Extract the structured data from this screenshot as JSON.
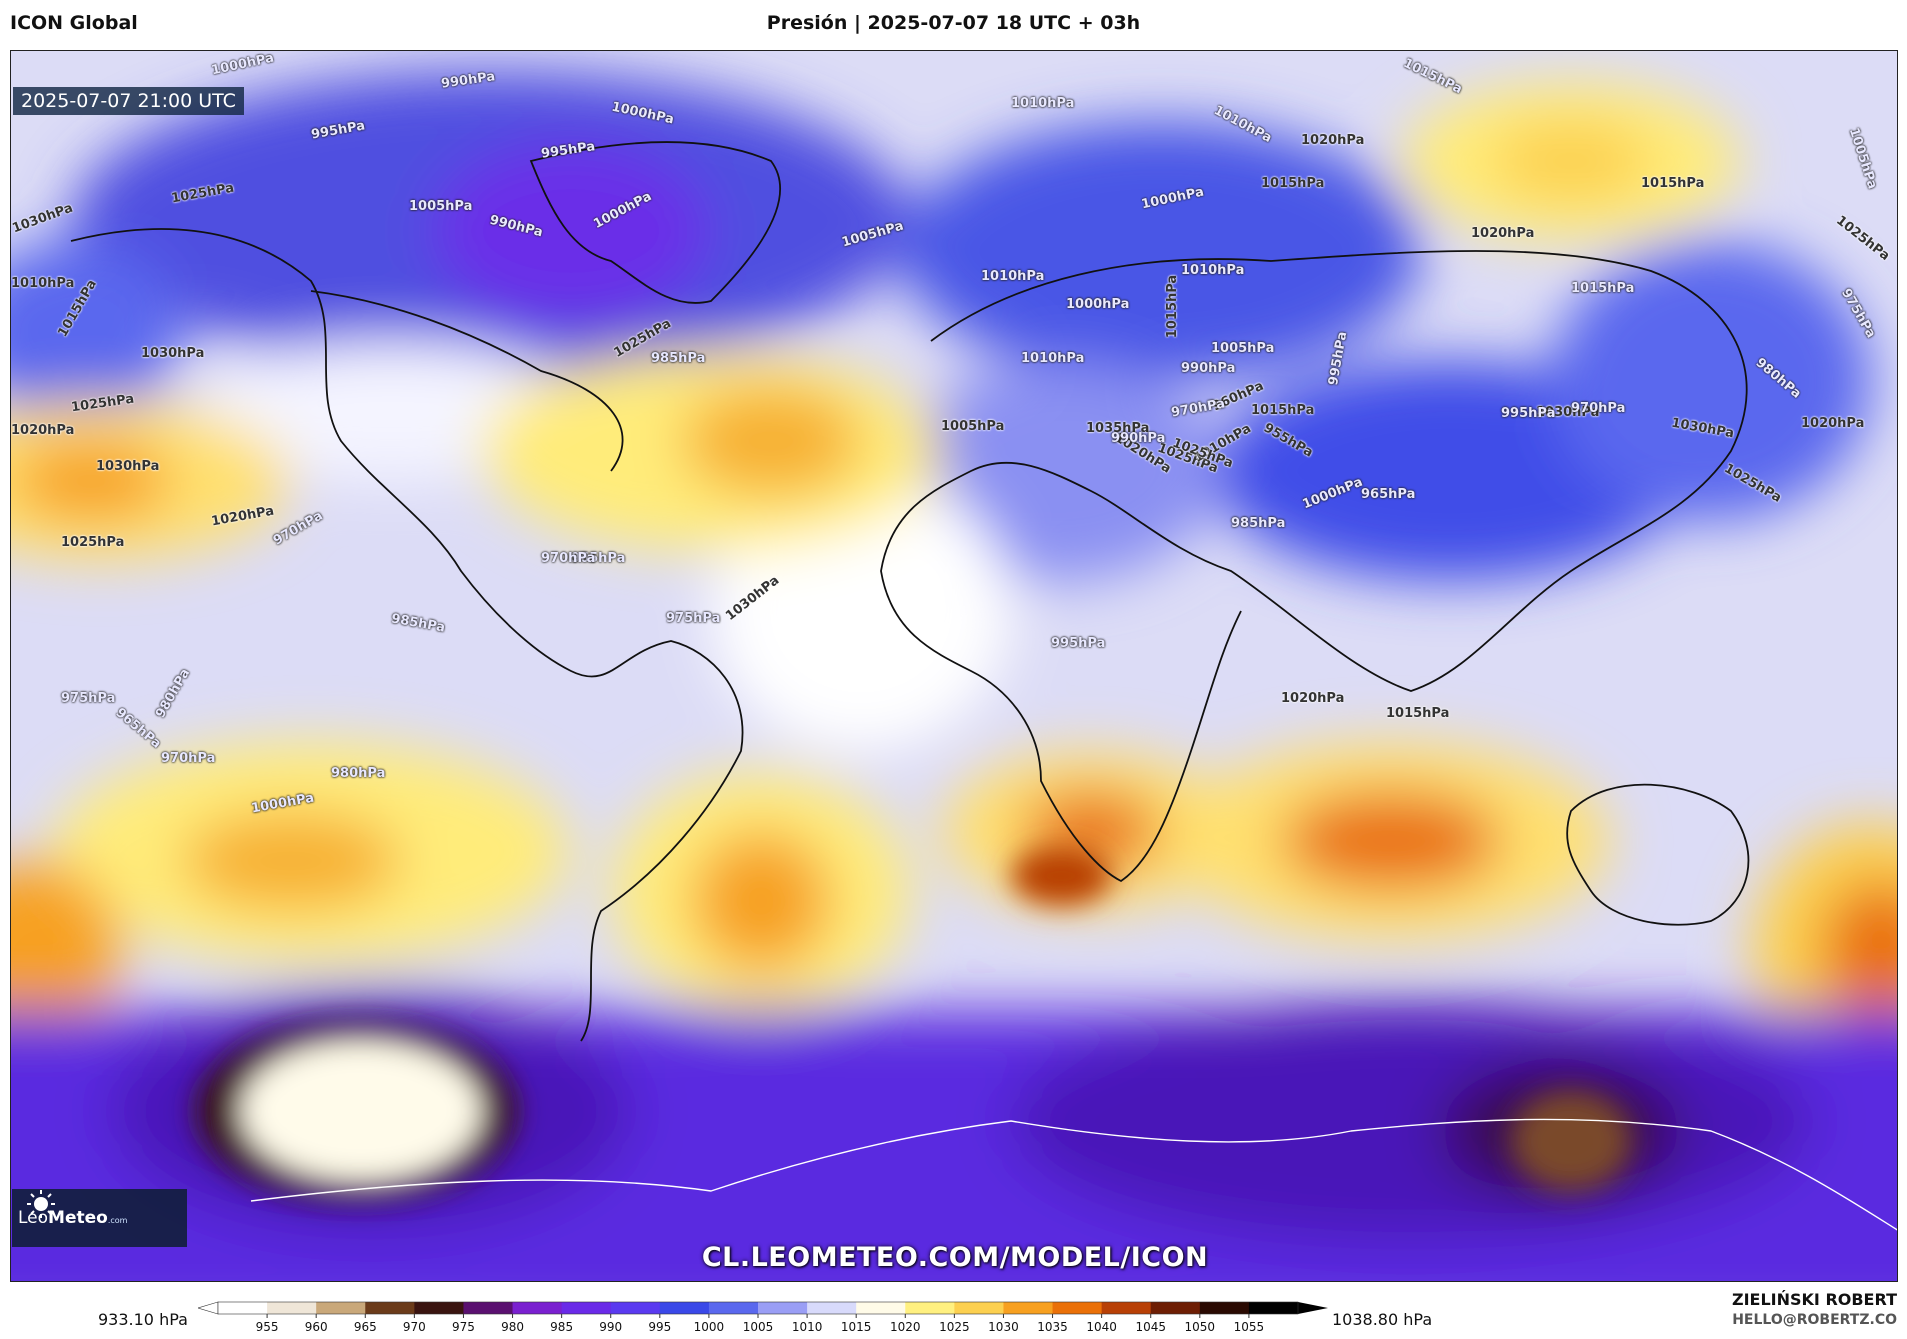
{
  "header": {
    "model": "ICON Global",
    "title": "Presión | 2025-07-07 18 UTC + 03h"
  },
  "map": {
    "valid_time": "2025-07-07 21:00 UTC",
    "website": "CL.LEOMETEO.COM/MODEL/ICON",
    "logo": {
      "name": "Leo",
      "bold": "Meteo",
      "suffix": ".com",
      "icon": "sun-logo-icon"
    },
    "isobar_labels": [
      {
        "t": "1000hPa",
        "dark": false
      },
      {
        "t": "990hPa",
        "dark": false
      },
      {
        "t": "995hPa",
        "dark": false
      },
      {
        "t": "1000hPa",
        "dark": false
      },
      {
        "t": "995hPa",
        "dark": false
      },
      {
        "t": "1005hPa",
        "dark": false
      },
      {
        "t": "990hPa",
        "dark": false
      },
      {
        "t": "1000hPa",
        "dark": false
      },
      {
        "t": "1015hPa",
        "dark": false
      },
      {
        "t": "1010hPa",
        "dark": false
      },
      {
        "t": "1010hPa",
        "dark": false
      },
      {
        "t": "1005hPa",
        "dark": false
      },
      {
        "t": "1025hPa",
        "dark": true
      },
      {
        "t": "1030hPa",
        "dark": true
      },
      {
        "t": "1020hPa",
        "dark": true
      },
      {
        "t": "1015hPa",
        "dark": true
      },
      {
        "t": "1015hPa",
        "dark": true
      },
      {
        "t": "1025hPa",
        "dark": true
      },
      {
        "t": "1020hPa",
        "dark": true
      },
      {
        "t": "1010hPa",
        "dark": true
      },
      {
        "t": "1015hPa",
        "dark": true
      },
      {
        "t": "1000hPa",
        "dark": false
      },
      {
        "t": "1010hPa",
        "dark": false
      },
      {
        "t": "1000hPa",
        "dark": false
      },
      {
        "t": "1015hPa",
        "dark": false
      },
      {
        "t": "1010hPa",
        "dark": false
      },
      {
        "t": "1005hPa",
        "dark": false
      },
      {
        "t": "1025hPa",
        "dark": true
      },
      {
        "t": "1020hPa",
        "dark": true
      },
      {
        "t": "1015hPa",
        "dark": true
      },
      {
        "t": "1030hPa",
        "dark": true
      },
      {
        "t": "1025hPa",
        "dark": true
      },
      {
        "t": "1030hPa",
        "dark": true
      },
      {
        "t": "1015hPa",
        "dark": true
      },
      {
        "t": "1020hPa",
        "dark": true
      },
      {
        "t": "1030hPa",
        "dark": true
      },
      {
        "t": "1035hPa",
        "dark": true
      },
      {
        "t": "1025hPa",
        "dark": true
      },
      {
        "t": "1010hPa",
        "dark": true
      },
      {
        "t": "1005hPa",
        "dark": true
      },
      {
        "t": "1025hPa",
        "dark": true
      },
      {
        "t": "1030hPa",
        "dark": true
      },
      {
        "t": "1020hPa",
        "dark": true
      },
      {
        "t": "1025hPa",
        "dark": true
      },
      {
        "t": "1030hPa",
        "dark": true
      },
      {
        "t": "1025hPa",
        "dark": true
      },
      {
        "t": "1020hPa",
        "dark": true
      },
      {
        "t": "1010hPa",
        "dark": false
      },
      {
        "t": "1005hPa",
        "dark": false
      },
      {
        "t": "990hPa",
        "dark": false
      },
      {
        "t": "995hPa",
        "dark": false
      },
      {
        "t": "975hPa",
        "dark": false
      },
      {
        "t": "980hPa",
        "dark": false
      },
      {
        "t": "965hPa",
        "dark": false
      },
      {
        "t": "955hPa",
        "dark": true
      },
      {
        "t": "960hPa",
        "dark": true
      },
      {
        "t": "970hPa",
        "dark": false
      },
      {
        "t": "985hPa",
        "dark": false
      },
      {
        "t": "1000hPa",
        "dark": false
      },
      {
        "t": "995hPa",
        "dark": false
      },
      {
        "t": "985hPa",
        "dark": false
      },
      {
        "t": "990hPa",
        "dark": false
      },
      {
        "t": "970hPa",
        "dark": false
      },
      {
        "t": "965hPa",
        "dark": false
      },
      {
        "t": "970hPa",
        "dark": false
      },
      {
        "t": "970hPa",
        "dark": false
      },
      {
        "t": "965hPa",
        "dark": false
      },
      {
        "t": "980hPa",
        "dark": false
      },
      {
        "t": "975hPa",
        "dark": false
      },
      {
        "t": "985hPa",
        "dark": false
      },
      {
        "t": "975hPa",
        "dark": false
      },
      {
        "t": "970hPa",
        "dark": false
      },
      {
        "t": "980hPa",
        "dark": false
      },
      {
        "t": "1000hPa",
        "dark": false
      },
      {
        "t": "995hPa",
        "dark": false
      },
      {
        "t": "1020hPa",
        "dark": true
      },
      {
        "t": "1015hPa",
        "dark": true
      }
    ]
  },
  "legend": {
    "min_label": "933.10 hPa",
    "max_label": "1038.80 hPa",
    "ticks": [
      "955",
      "960",
      "965",
      "970",
      "975",
      "980",
      "985",
      "990",
      "995",
      "1000",
      "1005",
      "1010",
      "1015",
      "1020",
      "1025",
      "1030",
      "1035",
      "1040",
      "1045",
      "1050",
      "1055"
    ],
    "colors": [
      "#ffffff",
      "#efe6d8",
      "#c9a87a",
      "#6b3b1a",
      "#3a1410",
      "#5a1070",
      "#7a20d0",
      "#6a2ae8",
      "#5a3af0",
      "#3a48e8",
      "#5a68ee",
      "#9a9ef5",
      "#d8dafb",
      "#fffbe8",
      "#fff080",
      "#fcd050",
      "#f7a020",
      "#ea7008",
      "#b84006",
      "#6e1e04",
      "#2a0a02",
      "#000000"
    ]
  },
  "author": {
    "name": "ZIELIŃSKI ROBERT",
    "email": "HELLO@ROBERTZ.CO"
  }
}
